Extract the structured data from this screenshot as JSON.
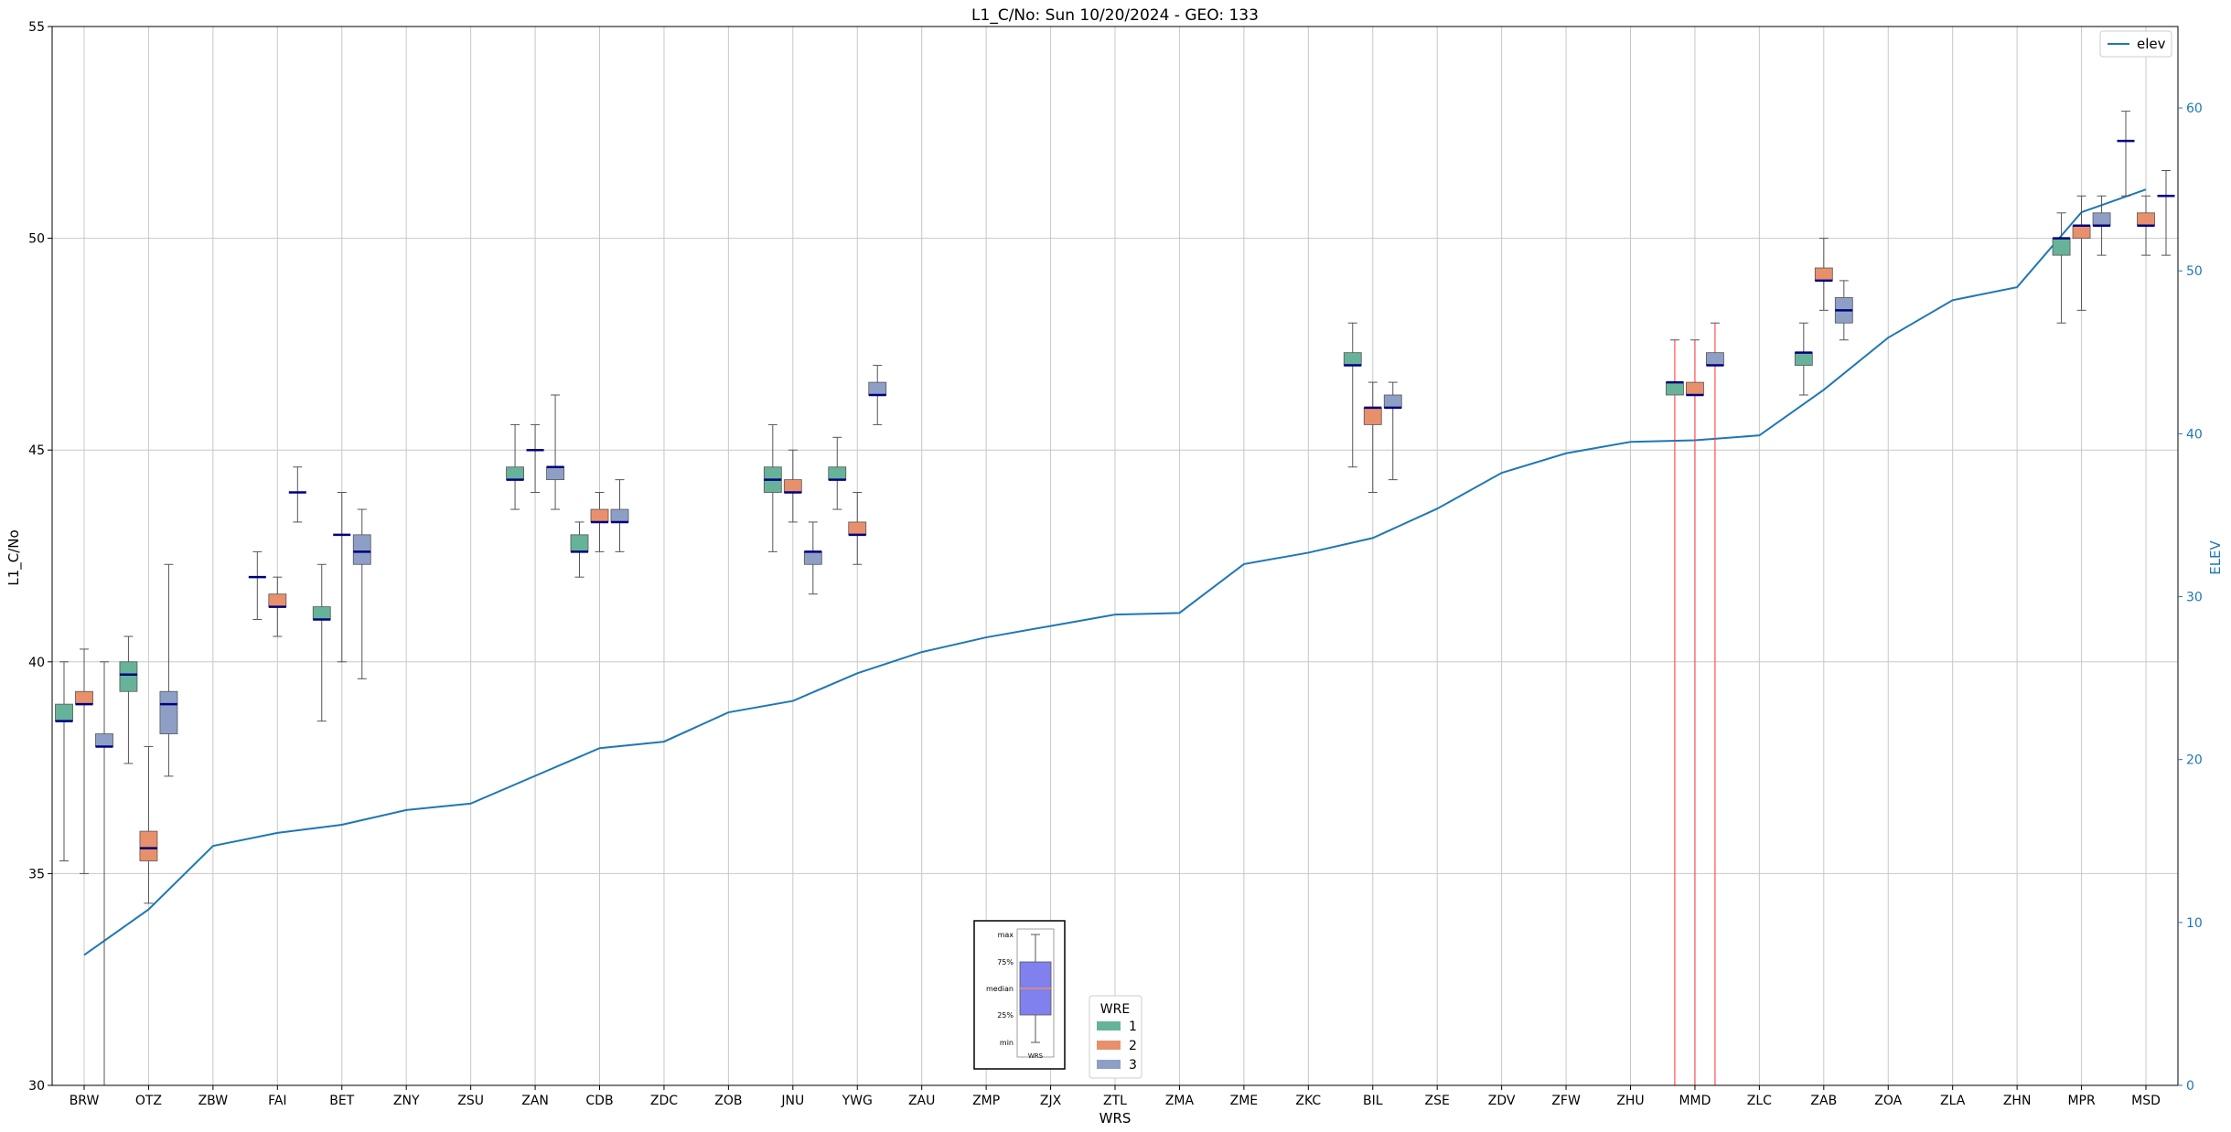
{
  "chart_data": {
    "type": "box",
    "title": "L1_C/No: Sun 10/20/2024 - GEO: 133",
    "xlabel": "WRS",
    "ylabel": "L1_C/No",
    "y2label": "ELEV",
    "ylim": [
      30,
      55
    ],
    "y2lim": [
      0,
      65
    ],
    "yticks": [
      30,
      35,
      40,
      45,
      50,
      55
    ],
    "y2ticks": [
      0,
      10,
      20,
      30,
      40,
      50,
      60
    ],
    "grid": true,
    "categories": [
      "BRW",
      "OTZ",
      "ZBW",
      "FAI",
      "BET",
      "ZNY",
      "ZSU",
      "ZAN",
      "CDB",
      "ZDC",
      "ZOB",
      "JNU",
      "YWG",
      "ZAU",
      "ZMP",
      "ZJX",
      "ZTL",
      "ZMA",
      "ZME",
      "ZKC",
      "BIL",
      "ZSE",
      "ZDV",
      "ZFW",
      "ZHU",
      "MMD",
      "ZLC",
      "ZAB",
      "ZOA",
      "ZLA",
      "ZHN",
      "MPR",
      "MSD"
    ],
    "legend_box": {
      "title": "WRE",
      "position": "bottom-center",
      "entries": [
        {
          "label": "1",
          "color": "#66b39a"
        },
        {
          "label": "2",
          "color": "#e8906c"
        },
        {
          "label": "3",
          "color": "#8e9fc6"
        }
      ]
    },
    "legend_line": {
      "position": "top-right",
      "entries": [
        {
          "label": "elev",
          "color": "#1f77b4"
        }
      ]
    },
    "box_series": [
      {
        "name": "1",
        "color": "#66b39a",
        "boxes": [
          {
            "cat": "BRW",
            "min": 35.3,
            "q1": 38.6,
            "median": 38.6,
            "q3": 39.0,
            "max": 40.0
          },
          {
            "cat": "OTZ",
            "min": 37.6,
            "q1": 39.3,
            "median": 39.7,
            "q3": 40.0,
            "max": 40.6
          },
          {
            "cat": "FAI",
            "min": 41.0,
            "q1": 42.0,
            "median": 42.0,
            "q3": 42.0,
            "max": 42.6
          },
          {
            "cat": "BET",
            "min": 38.6,
            "q1": 41.0,
            "median": 41.0,
            "q3": 41.3,
            "max": 42.3
          },
          {
            "cat": "ZAN",
            "min": 43.6,
            "q1": 44.3,
            "median": 44.3,
            "q3": 44.6,
            "max": 45.6
          },
          {
            "cat": "CDB",
            "min": 42.0,
            "q1": 42.6,
            "median": 42.6,
            "q3": 43.0,
            "max": 43.3
          },
          {
            "cat": "JNU",
            "min": 42.6,
            "q1": 44.0,
            "median": 44.3,
            "q3": 44.6,
            "max": 45.6
          },
          {
            "cat": "YWG",
            "min": 43.6,
            "q1": 44.3,
            "median": 44.3,
            "q3": 44.6,
            "max": 45.3
          },
          {
            "cat": "BIL",
            "min": 44.6,
            "q1": 47.0,
            "median": 47.0,
            "q3": 47.3,
            "max": 48.0
          },
          {
            "cat": "MMD",
            "min": 30.0,
            "q1": 46.3,
            "median": 46.6,
            "q3": 46.6,
            "max": 47.6
          },
          {
            "cat": "ZAB",
            "min": 46.3,
            "q1": 47.0,
            "median": 47.3,
            "q3": 47.3,
            "max": 48.0
          },
          {
            "cat": "MPR",
            "min": 48.0,
            "q1": 49.6,
            "median": 50.0,
            "q3": 50.0,
            "max": 50.6
          },
          {
            "cat": "MSD",
            "min": 51.0,
            "q1": 52.3,
            "median": 52.3,
            "q3": 52.3,
            "max": 53.0
          }
        ]
      },
      {
        "name": "2",
        "color": "#e8906c",
        "boxes": [
          {
            "cat": "BRW",
            "min": 35.0,
            "q1": 39.0,
            "median": 39.0,
            "q3": 39.3,
            "max": 40.3
          },
          {
            "cat": "OTZ",
            "min": 34.3,
            "q1": 35.3,
            "median": 35.6,
            "q3": 36.0,
            "max": 38.0
          },
          {
            "cat": "FAI",
            "min": 40.6,
            "q1": 41.3,
            "median": 41.3,
            "q3": 41.6,
            "max": 42.0
          },
          {
            "cat": "BET",
            "min": 40.0,
            "q1": 43.0,
            "median": 43.0,
            "q3": 43.0,
            "max": 44.0
          },
          {
            "cat": "ZAN",
            "min": 44.0,
            "q1": 45.0,
            "median": 45.0,
            "q3": 45.0,
            "max": 45.6
          },
          {
            "cat": "CDB",
            "min": 42.6,
            "q1": 43.3,
            "median": 43.3,
            "q3": 43.6,
            "max": 44.0
          },
          {
            "cat": "JNU",
            "min": 43.3,
            "q1": 44.0,
            "median": 44.0,
            "q3": 44.3,
            "max": 45.0
          },
          {
            "cat": "YWG",
            "min": 42.3,
            "q1": 43.0,
            "median": 43.0,
            "q3": 43.3,
            "max": 44.0
          },
          {
            "cat": "BIL",
            "min": 44.0,
            "q1": 45.6,
            "median": 46.0,
            "q3": 46.0,
            "max": 46.6
          },
          {
            "cat": "MMD",
            "min": 30.0,
            "q1": 46.3,
            "median": 46.3,
            "q3": 46.6,
            "max": 47.6
          },
          {
            "cat": "ZAB",
            "min": 48.3,
            "q1": 49.0,
            "median": 49.0,
            "q3": 49.3,
            "max": 50.0
          },
          {
            "cat": "MPR",
            "min": 48.3,
            "q1": 50.0,
            "median": 50.3,
            "q3": 50.3,
            "max": 51.0
          },
          {
            "cat": "MSD",
            "min": 49.6,
            "q1": 50.3,
            "median": 50.3,
            "q3": 50.6,
            "max": 51.0
          }
        ]
      },
      {
        "name": "3",
        "color": "#8e9fc6",
        "boxes": [
          {
            "cat": "BRW",
            "min": 30.0,
            "q1": 38.0,
            "median": 38.0,
            "q3": 38.3,
            "max": 40.0
          },
          {
            "cat": "OTZ",
            "min": 37.3,
            "q1": 38.3,
            "median": 39.0,
            "q3": 39.3,
            "max": 42.3
          },
          {
            "cat": "FAI",
            "min": 43.3,
            "q1": 44.0,
            "median": 44.0,
            "q3": 44.0,
            "max": 44.6
          },
          {
            "cat": "BET",
            "min": 39.6,
            "q1": 42.3,
            "median": 42.6,
            "q3": 43.0,
            "max": 43.6
          },
          {
            "cat": "ZAN",
            "min": 43.6,
            "q1": 44.3,
            "median": 44.6,
            "q3": 44.6,
            "max": 46.3
          },
          {
            "cat": "CDB",
            "min": 42.6,
            "q1": 43.3,
            "median": 43.3,
            "q3": 43.6,
            "max": 44.3
          },
          {
            "cat": "JNU",
            "min": 41.6,
            "q1": 42.3,
            "median": 42.6,
            "q3": 42.6,
            "max": 43.3
          },
          {
            "cat": "YWG",
            "min": 45.6,
            "q1": 46.3,
            "median": 46.3,
            "q3": 46.6,
            "max": 47.0
          },
          {
            "cat": "BIL",
            "min": 44.3,
            "q1": 46.0,
            "median": 46.0,
            "q3": 46.3,
            "max": 46.6
          },
          {
            "cat": "MMD",
            "min": 30.0,
            "q1": 47.0,
            "median": 47.0,
            "q3": 47.3,
            "max": 48.0
          },
          {
            "cat": "ZAB",
            "min": 47.6,
            "q1": 48.0,
            "median": 48.3,
            "q3": 48.6,
            "max": 49.0
          },
          {
            "cat": "MPR",
            "min": 49.6,
            "q1": 50.3,
            "median": 50.3,
            "q3": 50.6,
            "max": 51.0
          },
          {
            "cat": "MSD",
            "min": 49.6,
            "q1": 51.0,
            "median": 51.0,
            "q3": 51.0,
            "max": 51.6
          }
        ]
      }
    ],
    "line_series": {
      "name": "elev",
      "color": "#1f77b4",
      "axis": "right",
      "values": [
        8.0,
        10.8,
        14.7,
        15.5,
        16.0,
        16.9,
        17.3,
        19.0,
        20.7,
        21.1,
        22.9,
        23.6,
        25.3,
        26.6,
        27.5,
        28.2,
        28.9,
        29.0,
        32.0,
        32.7,
        33.6,
        35.4,
        37.6,
        38.8,
        39.5,
        39.6,
        39.9,
        42.7,
        45.9,
        48.2,
        49.0,
        53.6,
        55.0
      ]
    },
    "legend_inset": {
      "labels": [
        "max",
        "75%",
        "median",
        "25%",
        "min"
      ],
      "xlabel": "WRS",
      "color": "#8080ee"
    }
  }
}
